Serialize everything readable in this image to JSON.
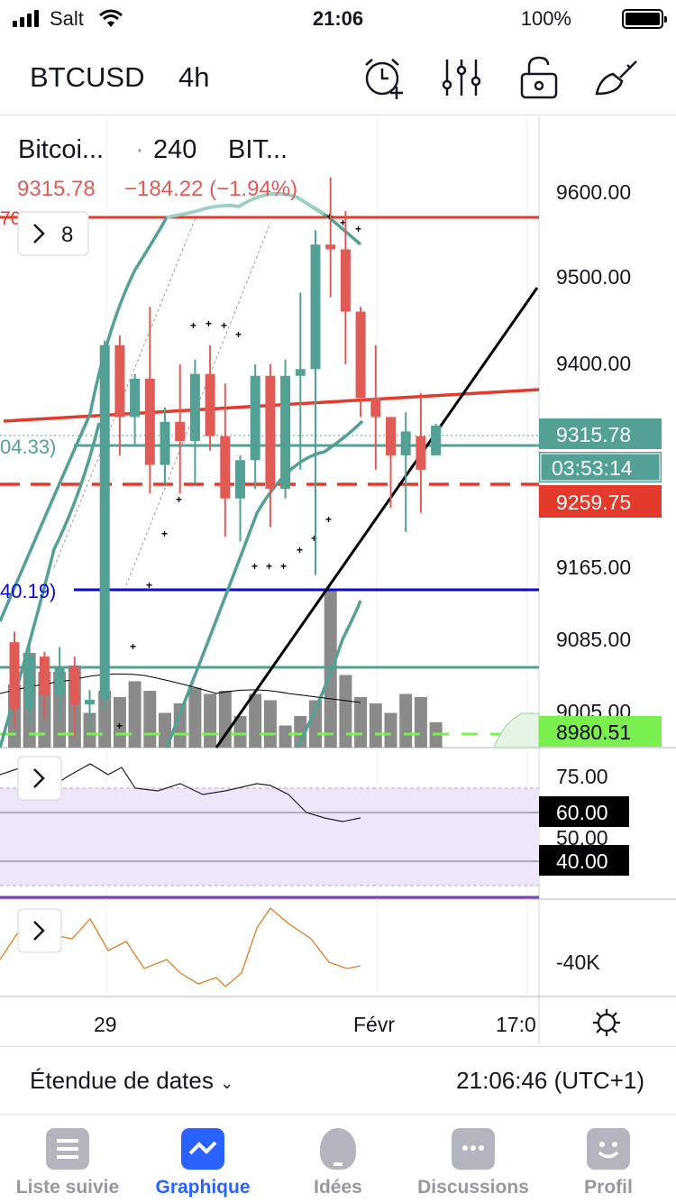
{
  "status": {
    "carrier": "Salt",
    "time": "21:06",
    "battery": "100%"
  },
  "toolbar": {
    "symbol": "BTCUSD",
    "interval": "4h",
    "tools": [
      "alarm-add-icon",
      "indicators-icon",
      "lock-icon",
      "drawing-icon"
    ]
  },
  "legend": {
    "title": "Bitcoi...",
    "dot": "·",
    "interval": "240",
    "exchange": "BIT...",
    "price": "9315.78",
    "change": "−184.22 (−1.94%)",
    "indicators_count": "8",
    "left_label_red": "70",
    "left_label_teal": "04.33)",
    "left_label_blue": "40.19)"
  },
  "price_axis": {
    "ticks": [
      "9600.00",
      "9500.00",
      "9400.00",
      "9165.00",
      "9085.00",
      "9005.00"
    ],
    "last_price": "9315.78",
    "countdown": "03:53:14",
    "red_level": "9259.75",
    "green_level": "8980.51"
  },
  "rsi_axis": {
    "ticks": [
      "75.00",
      "60.00",
      "50.00",
      "40.00"
    ]
  },
  "osc_axis": {
    "ticks": [
      "-40K"
    ]
  },
  "time_axis": {
    "ticks": [
      "29",
      "Févr",
      "17:0"
    ]
  },
  "bottom": {
    "range_label": "Étendue de dates",
    "clock": "21:06:46 (UTC+1)"
  },
  "tabs": [
    {
      "label": "Liste suivie",
      "icon": "list-icon"
    },
    {
      "label": "Graphique",
      "icon": "chart-icon"
    },
    {
      "label": "Idées",
      "icon": "bulb-icon"
    },
    {
      "label": "Discussions",
      "icon": "chat-icon"
    },
    {
      "label": "Profil",
      "icon": "smile-icon"
    }
  ],
  "colors": {
    "up": "#53a195",
    "down": "#e15b56",
    "red_line": "#e33a2b",
    "blue_line": "#0a0ad0",
    "green_level": "#79f04f",
    "accent": "#2962ff"
  },
  "chart_data": {
    "type": "candlestick",
    "candles": [
      {
        "o": 9090,
        "h": 9101,
        "l": 9000,
        "c": 9020
      },
      {
        "o": 9020,
        "h": 9090,
        "l": 9005,
        "c": 9075
      },
      {
        "o": 9075,
        "h": 9080,
        "l": 9010,
        "c": 9035
      },
      {
        "o": 9035,
        "h": 9085,
        "l": 9010,
        "c": 9065
      },
      {
        "o": 9065,
        "h": 9075,
        "l": 8990,
        "c": 9025
      },
      {
        "o": 9025,
        "h": 9040,
        "l": 9000,
        "c": 9030
      },
      {
        "o": 9030,
        "h": 9405,
        "l": 9020,
        "c": 9400
      },
      {
        "o": 9400,
        "h": 9410,
        "l": 9285,
        "c": 9325
      },
      {
        "o": 9325,
        "h": 9370,
        "l": 9295,
        "c": 9365
      },
      {
        "o": 9365,
        "h": 9440,
        "l": 9245,
        "c": 9275
      },
      {
        "o": 9275,
        "h": 9335,
        "l": 9255,
        "c": 9320
      },
      {
        "o": 9320,
        "h": 9380,
        "l": 9245,
        "c": 9300
      },
      {
        "o": 9300,
        "h": 9385,
        "l": 9255,
        "c": 9370
      },
      {
        "o": 9370,
        "h": 9400,
        "l": 9290,
        "c": 9305
      },
      {
        "o": 9305,
        "h": 9360,
        "l": 9200,
        "c": 9240
      },
      {
        "o": 9240,
        "h": 9285,
        "l": 9195,
        "c": 9280
      },
      {
        "o": 9280,
        "h": 9380,
        "l": 9250,
        "c": 9368
      },
      {
        "o": 9368,
        "h": 9380,
        "l": 9210,
        "c": 9250
      },
      {
        "o": 9250,
        "h": 9385,
        "l": 9240,
        "c": 9368
      },
      {
        "o": 9368,
        "h": 9455,
        "l": 9270,
        "c": 9375
      },
      {
        "o": 9375,
        "h": 9520,
        "l": 9160,
        "c": 9505
      },
      {
        "o": 9505,
        "h": 9575,
        "l": 9450,
        "c": 9500
      },
      {
        "o": 9500,
        "h": 9540,
        "l": 9380,
        "c": 9435
      },
      {
        "o": 9435,
        "h": 9440,
        "l": 9325,
        "c": 9345
      },
      {
        "o": 9345,
        "h": 9400,
        "l": 9270,
        "c": 9325
      },
      {
        "o": 9325,
        "h": 9325,
        "l": 9230,
        "c": 9285
      },
      {
        "o": 9285,
        "h": 9330,
        "l": 9205,
        "c": 9310
      },
      {
        "o": 9305,
        "h": 9350,
        "l": 9225,
        "c": 9270
      },
      {
        "o": 9285,
        "h": 9318,
        "l": 9290,
        "c": 9316
      }
    ],
    "volume": [
      100,
      150,
      120,
      120,
      130,
      55,
      90,
      80,
      105,
      90,
      55,
      70,
      95,
      85,
      90,
      50,
      85,
      75,
      35,
      50,
      75,
      250,
      115,
      80,
      70,
      55,
      85,
      80,
      40
    ],
    "ylim": [
      8980,
      9620
    ]
  }
}
